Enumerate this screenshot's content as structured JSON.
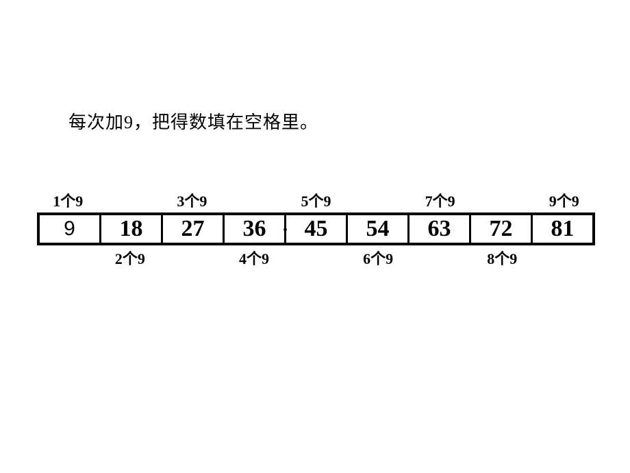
{
  "instruction": "每次加9，把得数填在空格里。",
  "labels_top": [
    "1个9",
    "",
    "3个9",
    "",
    "5个9",
    "",
    "7个9",
    "",
    "9个9"
  ],
  "cells": [
    "9",
    "18",
    "27",
    "36",
    "45",
    "54",
    "63",
    "72",
    "81"
  ],
  "labels_bottom": [
    "",
    "2个9",
    "",
    "4个9",
    "",
    "6个9",
    "",
    "8个9",
    ""
  ],
  "colors": {
    "background": "#ffffff",
    "text": "#000000",
    "border": "#000000"
  },
  "layout": {
    "cell_count": 9,
    "border_width_outer": 4,
    "border_width_inner": 3,
    "instruction_fontsize": 26,
    "label_fontsize": 22,
    "cell_fontsize": 34
  }
}
